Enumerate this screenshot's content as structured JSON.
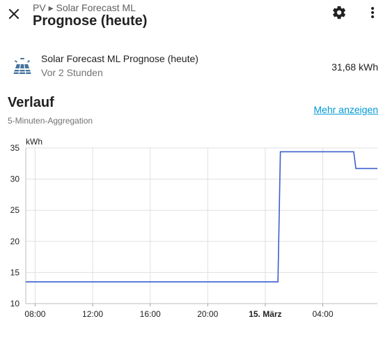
{
  "header": {
    "breadcrumb": "PV ▸ Solar Forecast ML",
    "title": "Prognose (heute)"
  },
  "entity": {
    "name": "Solar Forecast ML Prognose (heute)",
    "last_changed": "Vor 2 Stunden",
    "value": "31,68 kWh"
  },
  "history": {
    "title": "Verlauf",
    "aggregation": "5-Minuten-Aggregation",
    "more_link": "Mehr anzeigen"
  },
  "chart_data": {
    "type": "line",
    "ylabel": "kWh",
    "ylim": [
      10,
      35
    ],
    "yticks": [
      "35",
      "30",
      "25",
      "20",
      "15",
      "10"
    ],
    "xticks": [
      {
        "label": "08:00",
        "bold": false
      },
      {
        "label": "12:00",
        "bold": false
      },
      {
        "label": "16:00",
        "bold": false
      },
      {
        "label": "20:00",
        "bold": false
      },
      {
        "label": "15. März",
        "bold": true
      },
      {
        "label": "04:00",
        "bold": false
      }
    ],
    "line_color": "#3a5fcd",
    "series": [
      {
        "x_hours": [
          7.35,
          24.88,
          25.05,
          30.15,
          30.3,
          31.8
        ],
        "values": [
          13.5,
          13.5,
          34.4,
          34.4,
          31.7,
          31.7
        ]
      }
    ]
  }
}
